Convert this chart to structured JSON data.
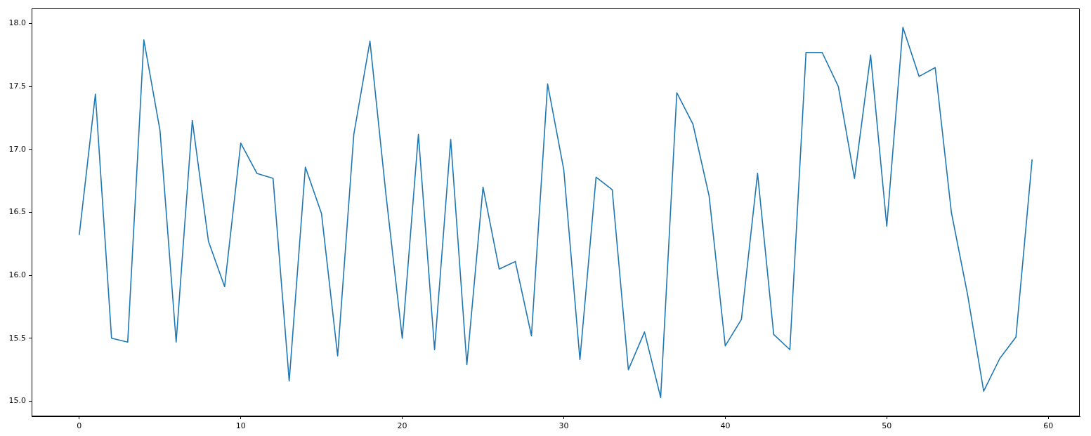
{
  "chart_data": {
    "type": "line",
    "x": [
      0,
      1,
      2,
      3,
      4,
      5,
      6,
      7,
      8,
      9,
      10,
      11,
      12,
      13,
      14,
      15,
      16,
      17,
      18,
      19,
      20,
      21,
      22,
      23,
      24,
      25,
      26,
      27,
      28,
      29,
      30,
      31,
      32,
      33,
      34,
      35,
      36,
      37,
      38,
      39,
      40,
      41,
      42,
      43,
      44,
      45,
      46,
      47,
      48,
      49,
      50,
      51,
      52,
      53,
      54,
      55,
      56,
      57,
      58,
      59
    ],
    "series": [
      {
        "color": "#1f77b4",
        "values": [
          16.32,
          17.44,
          15.5,
          15.47,
          17.87,
          17.15,
          15.47,
          17.23,
          16.27,
          15.91,
          17.05,
          16.81,
          16.77,
          15.16,
          16.86,
          16.49,
          15.36,
          17.12,
          17.86,
          16.63,
          15.5,
          17.12,
          15.41,
          17.08,
          15.29,
          16.7,
          16.05,
          16.11,
          15.52,
          17.52,
          16.84,
          15.33,
          16.78,
          16.68,
          15.25,
          15.55,
          15.03,
          17.45,
          17.2,
          16.63,
          15.44,
          15.65,
          16.81,
          15.53,
          15.41,
          17.77,
          17.77,
          17.5,
          16.77,
          17.75,
          16.39,
          17.97,
          17.58,
          17.65,
          16.5,
          15.85,
          15.08,
          15.34,
          15.51,
          16.92
        ]
      }
    ],
    "xlim": [
      -2.95,
      61.95
    ],
    "ylim": [
      14.88,
      18.12
    ],
    "xticks": [
      0,
      10,
      20,
      30,
      40,
      50,
      60
    ],
    "yticks": [
      {
        "value": 15,
        "label": "15.0"
      },
      {
        "value": 15.5,
        "label": "15.5"
      },
      {
        "value": 16,
        "label": "16.0"
      },
      {
        "value": 16.5,
        "label": "16.5"
      },
      {
        "value": 17,
        "label": "17.0"
      },
      {
        "value": 17.5,
        "label": "17.5"
      },
      {
        "value": 18,
        "label": "18.0"
      }
    ],
    "grid": false,
    "legend": false,
    "marker": "none",
    "line_style": "solid"
  }
}
